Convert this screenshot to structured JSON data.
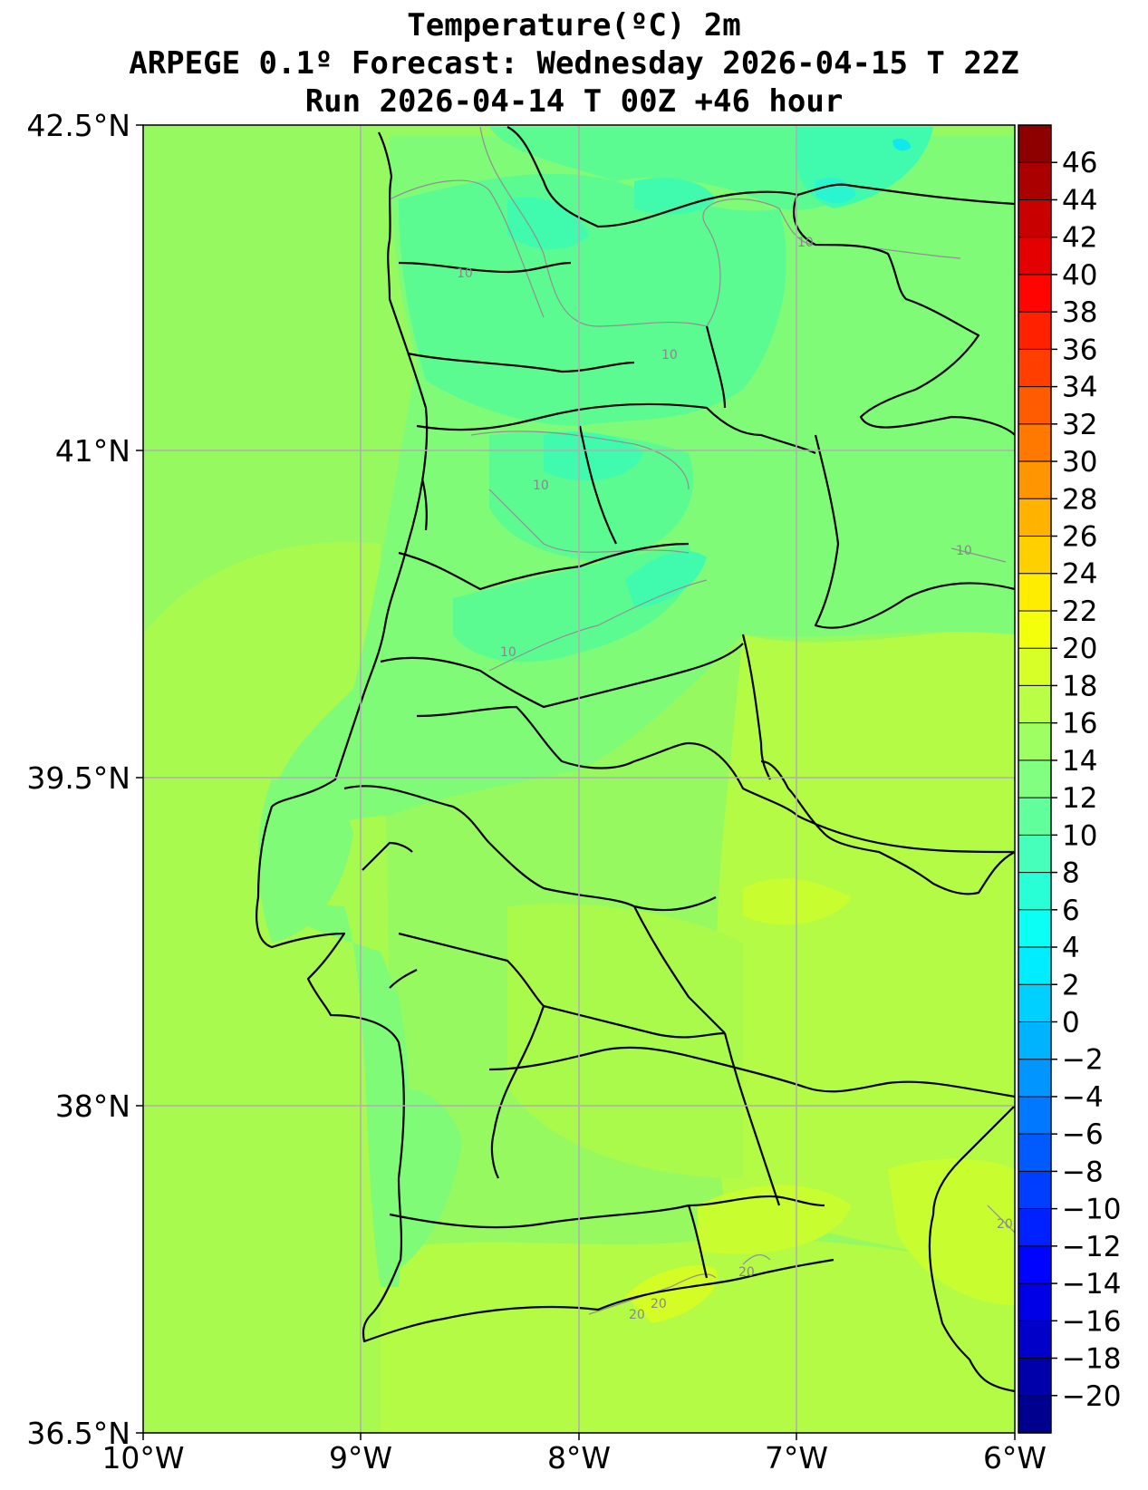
{
  "title": {
    "line1": "Temperature(ºC) 2m",
    "line2": "ARPEGE 0.1º Forecast: Wednesday 2026-04-15 T 22Z",
    "line3": "Run 2026-04-14 T 00Z +46 hour"
  },
  "map": {
    "lon_range": [
      -10,
      -6
    ],
    "lat_range": [
      36.5,
      42.5
    ],
    "lon_ticks": [
      "10°W",
      "9°W",
      "8°W",
      "7°W",
      "6°W"
    ],
    "lat_ticks": [
      "42.5°N",
      "41°N",
      "39.5°N",
      "38°N",
      "36.5°N"
    ],
    "grid": true,
    "background_color": "#96f960"
  },
  "colorbar": {
    "min": -22,
    "max": 48,
    "step": 2,
    "tick_labels": [
      "46",
      "44",
      "42",
      "40",
      "38",
      "36",
      "34",
      "32",
      "30",
      "28",
      "26",
      "24",
      "22",
      "20",
      "18",
      "16",
      "14",
      "12",
      "10",
      "8",
      "6",
      "4",
      "2",
      "0",
      "−2",
      "−4",
      "−6",
      "−8",
      "−10",
      "−12",
      "−14",
      "−16",
      "−18",
      "−20"
    ],
    "tick_values": [
      46,
      44,
      42,
      40,
      38,
      36,
      34,
      32,
      30,
      28,
      26,
      24,
      22,
      20,
      18,
      16,
      14,
      12,
      10,
      8,
      6,
      4,
      2,
      0,
      -2,
      -4,
      -6,
      -8,
      -10,
      -12,
      -14,
      -16,
      -18,
      -20
    ],
    "colormap": "jet"
  },
  "contour_labels": [
    "10",
    "10",
    "10",
    "10",
    "10",
    "10",
    "20",
    "20",
    "20",
    "20"
  ]
}
